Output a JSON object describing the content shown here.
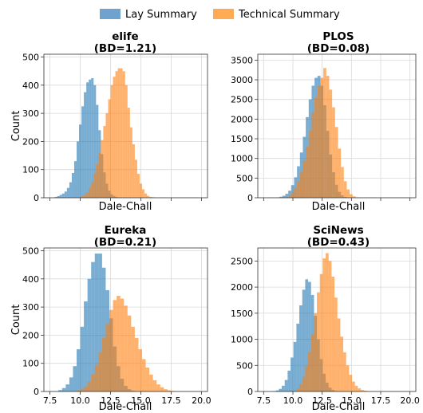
{
  "colors": {
    "lay": "#1f77b4",
    "technical": "#ff7f0e",
    "grid": "#d9d9d9",
    "axis": "#333333"
  },
  "legend": {
    "items": [
      {
        "label": "Lay Summary",
        "color": "#6fa3cd"
      },
      {
        "label": "Technical Summary",
        "color": "#ffaa55"
      }
    ]
  },
  "chart_data": [
    {
      "type": "histogram",
      "title_line1": "elife",
      "title_line2": "(BD=1.21)",
      "xlabel": "Dale-Chall",
      "ylabel": "Count",
      "xlim": [
        7,
        20.5
      ],
      "ylim": [
        0,
        510
      ],
      "xticks": [
        7.5,
        10.0,
        12.5,
        15.0,
        17.5,
        20.0
      ],
      "show_xtick_labels": false,
      "yticks": [
        0,
        100,
        200,
        300,
        400,
        500
      ],
      "grid": true,
      "bin_start": 7.9,
      "bin_width": 0.2,
      "series": [
        {
          "name": "Lay Summary",
          "values": [
            3,
            6,
            10,
            15,
            22,
            35,
            55,
            88,
            130,
            200,
            260,
            325,
            375,
            410,
            420,
            425,
            400,
            330,
            240,
            155,
            90,
            50,
            25,
            12,
            6,
            3,
            1
          ]
        },
        {
          "name": "Technical Summary",
          "start_bin": 10,
          "values": [
            3,
            6,
            10,
            20,
            35,
            55,
            85,
            120,
            160,
            205,
            255,
            300,
            350,
            400,
            430,
            450,
            460,
            460,
            450,
            400,
            320,
            250,
            190,
            135,
            85,
            50,
            30,
            15,
            7,
            3,
            2,
            1
          ]
        }
      ]
    },
    {
      "type": "histogram",
      "title_line1": "PLOS",
      "title_line2": "(BD=0.08)",
      "xlabel": "Dale-Chall",
      "ylabel": "",
      "xlim": [
        7,
        20.5
      ],
      "ylim": [
        0,
        3650
      ],
      "xticks": [
        7.5,
        10.0,
        12.5,
        15.0,
        17.5,
        20.0
      ],
      "show_xtick_labels": false,
      "yticks": [
        0,
        500,
        1000,
        1500,
        2000,
        2500,
        3000,
        3500
      ],
      "grid": true,
      "bin_start": 8.6,
      "bin_width": 0.25,
      "series": [
        {
          "name": "Lay Summary",
          "values": [
            10,
            25,
            50,
            100,
            180,
            320,
            520,
            800,
            1150,
            1550,
            2050,
            2500,
            2850,
            3050,
            3100,
            2850,
            2350,
            1700,
            1100,
            650,
            330,
            150,
            60,
            20,
            8,
            3
          ]
        },
        {
          "name": "Technical Summary",
          "start_bin": 2,
          "values": [
            10,
            25,
            60,
            130,
            250,
            420,
            650,
            950,
            1300,
            1700,
            2150,
            2550,
            2850,
            3050,
            3300,
            3100,
            2750,
            2300,
            1800,
            1250,
            780,
            420,
            210,
            90,
            35,
            12,
            4
          ]
        }
      ]
    },
    {
      "type": "histogram",
      "title_line1": "Eureka",
      "title_line2": "(BD=0.21)",
      "xlabel": "Dale-Chall",
      "ylabel": "Count",
      "xlim": [
        7,
        20.5
      ],
      "ylim": [
        0,
        510
      ],
      "xticks": [
        7.5,
        10.0,
        12.5,
        15.0,
        17.5,
        20.0
      ],
      "show_xtick_labels": true,
      "xtick_labels": [
        "7.5",
        "10.0",
        "12.5",
        "15.0",
        "17.5",
        "20.0"
      ],
      "yticks": [
        0,
        100,
        200,
        300,
        400,
        500
      ],
      "grid": true,
      "bin_start": 8.2,
      "bin_width": 0.3,
      "series": [
        {
          "name": "Lay Summary",
          "values": [
            5,
            12,
            25,
            50,
            90,
            150,
            230,
            320,
            400,
            460,
            490,
            490,
            440,
            360,
            260,
            160,
            90,
            45,
            20,
            8,
            3
          ]
        },
        {
          "name": "Technical Summary",
          "start_bin": 5,
          "values": [
            3,
            8,
            18,
            35,
            60,
            95,
            140,
            190,
            240,
            290,
            325,
            340,
            330,
            305,
            270,
            230,
            190,
            150,
            115,
            85,
            60,
            40,
            25,
            15,
            8,
            4,
            2
          ]
        }
      ]
    },
    {
      "type": "histogram",
      "title_line1": "SciNews",
      "title_line2": "(BD=0.43)",
      "xlabel": "Dale-Chall",
      "ylabel": "",
      "xlim": [
        7,
        20.5
      ],
      "ylim": [
        0,
        2750
      ],
      "xticks": [
        7.5,
        10.0,
        12.5,
        15.0,
        17.5,
        20.0
      ],
      "show_xtick_labels": true,
      "xtick_labels": [
        "7.5",
        "10.0",
        "12.5",
        "15.0",
        "17.5",
        "20.0"
      ],
      "yticks": [
        0,
        500,
        1000,
        1500,
        2000,
        2500
      ],
      "grid": true,
      "bin_start": 8.3,
      "bin_width": 0.25,
      "series": [
        {
          "name": "Lay Summary",
          "values": [
            8,
            20,
            50,
            110,
            220,
            400,
            650,
            950,
            1300,
            1650,
            1950,
            2150,
            2100,
            1850,
            1450,
            1000,
            620,
            340,
            170,
            75,
            30,
            10,
            4
          ]
        },
        {
          "name": "Technical Summary",
          "start_bin": 8,
          "values": [
            60,
            140,
            280,
            480,
            750,
            1100,
            1500,
            1900,
            2250,
            2550,
            2650,
            2500,
            2200,
            1800,
            1400,
            1050,
            750,
            500,
            320,
            190,
            110,
            60,
            30,
            15,
            6,
            2
          ]
        }
      ]
    }
  ]
}
